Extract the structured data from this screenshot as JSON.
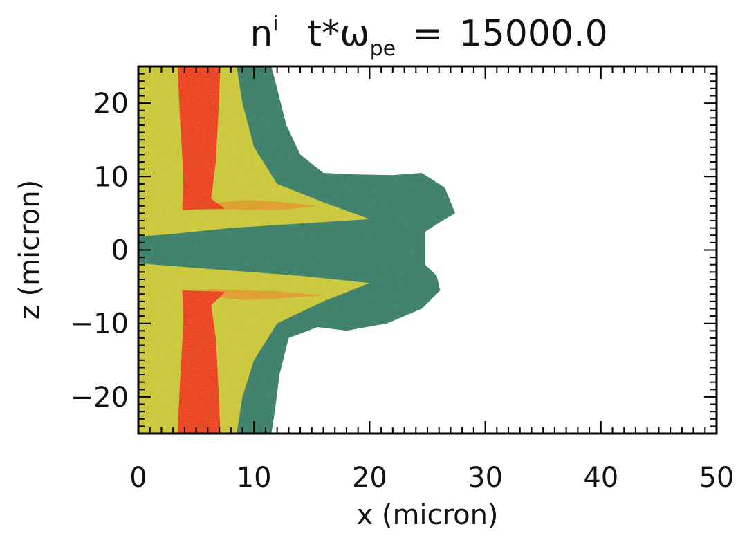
{
  "chart_data": {
    "type": "heatmap",
    "title": {
      "symbol": "n",
      "superscript": "i",
      "time_variable": "t*ω",
      "time_subscript": "pe",
      "equals": "=",
      "value": "15000.0"
    },
    "xlabel": "x (micron)",
    "ylabel": "z (micron)",
    "xlim": [
      0,
      50
    ],
    "ylim": [
      -25,
      25
    ],
    "x_ticks": [
      0,
      10,
      20,
      30,
      40,
      50
    ],
    "y_ticks": [
      -20,
      -10,
      0,
      10,
      20
    ],
    "x_minor_step": 1,
    "y_minor_step": 1,
    "grid": false,
    "colors": {
      "low": "#3e7f69",
      "low_light": "#5e9a86",
      "mid": "#c9c63c",
      "mid_light": "#dede5c",
      "mid_high": "#e39a35",
      "high": "#ec3b24",
      "frame": "#000000"
    },
    "regions": [
      {
        "name": "ion plasma envelope",
        "level": "low",
        "outline": [
          [
            0,
            25
          ],
          [
            11.5,
            25
          ],
          [
            12,
            22
          ],
          [
            12.8,
            17
          ],
          [
            14,
            13
          ],
          [
            16,
            10.5
          ],
          [
            18.5,
            10.3
          ],
          [
            22,
            10.2
          ],
          [
            24.5,
            10.5
          ],
          [
            26.5,
            8.5
          ],
          [
            27.4,
            5
          ],
          [
            26.3,
            4
          ],
          [
            24.8,
            2.5
          ],
          [
            24.8,
            -2
          ],
          [
            25.8,
            -3.5
          ],
          [
            26.1,
            -5.5
          ],
          [
            24.5,
            -8
          ],
          [
            21.5,
            -10
          ],
          [
            18,
            -11
          ],
          [
            15.5,
            -10.5
          ],
          [
            13,
            -12
          ],
          [
            12.2,
            -17
          ],
          [
            11.8,
            -22
          ],
          [
            11.5,
            -25
          ],
          [
            0,
            -25
          ]
        ]
      },
      {
        "name": "upper yellow region",
        "level": "mid",
        "outline": [
          [
            0,
            25
          ],
          [
            8.5,
            25
          ],
          [
            9,
            20
          ],
          [
            10,
            14
          ],
          [
            12,
            9
          ],
          [
            16,
            6.5
          ],
          [
            20,
            4.2
          ],
          [
            14,
            3.6
          ],
          [
            8,
            3
          ],
          [
            3,
            2.2
          ],
          [
            0,
            1.8
          ]
        ]
      },
      {
        "name": "lower yellow region",
        "level": "mid",
        "outline": [
          [
            0,
            -1.8
          ],
          [
            3,
            -2.2
          ],
          [
            8,
            -2.8
          ],
          [
            14,
            -3.5
          ],
          [
            20,
            -4.5
          ],
          [
            16,
            -7
          ],
          [
            12,
            -10
          ],
          [
            10,
            -15
          ],
          [
            9,
            -20
          ],
          [
            8.5,
            -25
          ],
          [
            0,
            -25
          ]
        ]
      },
      {
        "name": "upper filament",
        "level": "mid_high",
        "outline": [
          [
            6,
            6.3
          ],
          [
            9,
            6.8
          ],
          [
            12,
            6.6
          ],
          [
            15.5,
            6.0
          ],
          [
            12,
            5.4
          ],
          [
            9,
            5.5
          ],
          [
            6,
            5.6
          ]
        ]
      },
      {
        "name": "lower filament",
        "level": "mid_high",
        "outline": [
          [
            6,
            -5.3
          ],
          [
            9,
            -5.5
          ],
          [
            12,
            -5.6
          ],
          [
            16,
            -6.2
          ],
          [
            12,
            -6.6
          ],
          [
            9,
            -6.8
          ],
          [
            6,
            -6.3
          ]
        ]
      },
      {
        "name": "upper density column",
        "level": "high",
        "outline": [
          [
            3.4,
            25
          ],
          [
            7.1,
            25
          ],
          [
            6.9,
            18
          ],
          [
            6.7,
            12
          ],
          [
            6.3,
            7
          ],
          [
            7.5,
            5.6
          ],
          [
            3.8,
            5.5
          ],
          [
            3.9,
            10
          ],
          [
            3.6,
            18
          ]
        ]
      },
      {
        "name": "lower density column",
        "level": "high",
        "outline": [
          [
            3.8,
            -5.5
          ],
          [
            7.5,
            -5.7
          ],
          [
            6.3,
            -7.5
          ],
          [
            6.7,
            -12
          ],
          [
            6.9,
            -18
          ],
          [
            7.1,
            -25
          ],
          [
            3.4,
            -25
          ],
          [
            3.6,
            -18
          ],
          [
            3.9,
            -10
          ]
        ]
      }
    ]
  }
}
